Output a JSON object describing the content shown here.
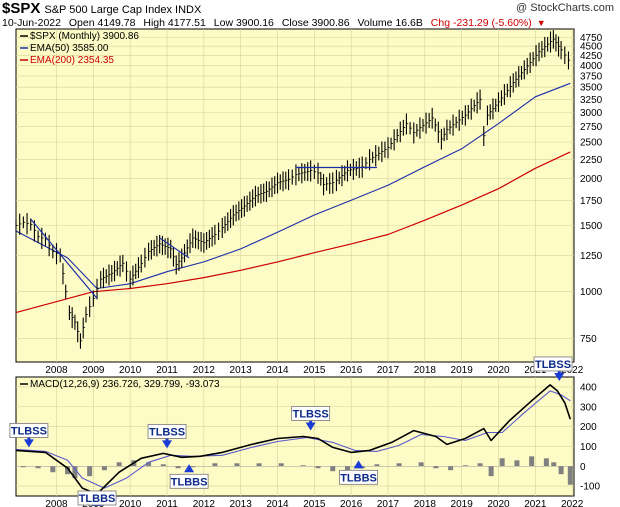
{
  "header": {
    "symbol": "$SPX",
    "description": "S&P 500 Large Cap Index INDX",
    "brand": "@ StockCharts.com",
    "quote": {
      "date": "10-Jun-2022",
      "open": "Open 4149.78",
      "high": "High 4177.51",
      "low": "Low 3900.16",
      "close": "Close 3900.86",
      "volume": "Volume 16.6B",
      "change": "Chg -231.29 (-5.60%)"
    }
  },
  "chart_data": [
    {
      "type": "line",
      "panel": "price",
      "y_scale": "log",
      "ylim": [
        650,
        5000
      ],
      "grid": true,
      "legend": [
        "$SPX (Monthly) 3900.86",
        "EMA(50) 3585.00",
        "EMA(200) 2354.35"
      ],
      "x_ticks": [
        "2008",
        "2009",
        "2010",
        "2011",
        "2012",
        "2013",
        "2014",
        "2015",
        "2016",
        "2017",
        "2018",
        "2019",
        "2020",
        "2021",
        "2022"
      ],
      "y_ticks": [
        750,
        1000,
        1250,
        1500,
        1750,
        2000,
        2250,
        2500,
        2750,
        3000,
        3250,
        3500,
        3750,
        4000,
        4250,
        4500,
        4750
      ],
      "colors": {
        "price": "#000000",
        "ema50": "#1c2fa8",
        "ema200": "#cc0000",
        "trendline": "#1c2fa8"
      },
      "series": [
        {
          "name": "$SPX (Monthly)",
          "x": [
            2007.4,
            2007.6,
            2007.8,
            2008.0,
            2008.2,
            2008.4,
            2008.6,
            2008.75,
            2008.85,
            2009.0,
            2009.15,
            2009.3,
            2009.5,
            2009.7,
            2010.0,
            2010.3,
            2010.5,
            2010.8,
            2011.0,
            2011.3,
            2011.6,
            2011.75,
            2011.9,
            2012.2,
            2012.5,
            2012.8,
            2013.0,
            2013.3,
            2013.6,
            2013.9,
            2014.2,
            2014.5,
            2014.8,
            2015.0,
            2015.4,
            2015.6,
            2015.75,
            2016.0,
            2016.1,
            2016.4,
            2016.8,
            2017.0,
            2017.5,
            2018.0,
            2018.2,
            2018.7,
            2018.95,
            2019.1,
            2019.6,
            2020.0,
            2020.1,
            2020.2,
            2020.5,
            2020.9,
            2021.2,
            2021.6,
            2021.99,
            2022.2,
            2022.4,
            2022.45
          ],
          "y": [
            1500,
            1530,
            1510,
            1400,
            1380,
            1280,
            1250,
            1000,
            880,
            830,
            740,
            870,
            960,
            1080,
            1120,
            1190,
            1080,
            1190,
            1280,
            1340,
            1300,
            1180,
            1230,
            1390,
            1350,
            1420,
            1480,
            1600,
            1690,
            1800,
            1850,
            1950,
            1990,
            2050,
            2100,
            2070,
            1930,
            1950,
            1980,
            2100,
            2150,
            2250,
            2420,
            2800,
            2650,
            2900,
            2550,
            2700,
            2950,
            3250,
            2600,
            2950,
            3200,
            3600,
            3900,
            4350,
            4700,
            4400,
            4130,
            3900
          ]
        },
        {
          "name": "EMA(50)",
          "x": [
            2007.4,
            2008.8,
            2009.6,
            2010.5,
            2011.5,
            2012.5,
            2013.5,
            2014.5,
            2015.5,
            2016.5,
            2017.5,
            2018.5,
            2019.5,
            2020.5,
            2021.5,
            2022.45
          ],
          "y": [
            1450,
            1230,
            1020,
            1050,
            1130,
            1200,
            1300,
            1440,
            1600,
            1750,
            1920,
            2150,
            2400,
            2800,
            3300,
            3585
          ]
        },
        {
          "name": "EMA(200)",
          "x": [
            2007.4,
            2009.5,
            2010.5,
            2011.5,
            2012.5,
            2013.5,
            2014.5,
            2015.5,
            2016.5,
            2017.5,
            2018.5,
            2019.5,
            2020.5,
            2021.5,
            2022.45
          ],
          "y": [
            880,
            1000,
            1020,
            1050,
            1090,
            1140,
            1200,
            1270,
            1340,
            1420,
            1550,
            1700,
            1880,
            2130,
            2354.35
          ]
        }
      ]
    },
    {
      "type": "line",
      "panel": "indicator",
      "ylim": [
        -150,
        450
      ],
      "grid": true,
      "legend": [
        "MACD(12,26,9) 236.726, 329.799, -93.073"
      ],
      "x_ticks": [
        "2008",
        "2009",
        "2010",
        "2011",
        "2012",
        "2013",
        "2014",
        "2015",
        "2016",
        "2017",
        "2018",
        "2019",
        "2020",
        "2021",
        "2022"
      ],
      "y_ticks": [
        -100,
        0,
        100,
        200,
        300,
        400
      ],
      "colors": {
        "macd": "#000000",
        "signal": "#5a5acd",
        "histogram": "#808080"
      },
      "series": [
        {
          "name": "MACD",
          "x": [
            2007.4,
            2008.2,
            2008.8,
            2009.2,
            2009.6,
            2010.2,
            2010.8,
            2011.4,
            2011.9,
            2012.4,
            2013.0,
            2013.8,
            2014.5,
            2015.2,
            2015.6,
            2016.0,
            2016.5,
            2017.0,
            2017.6,
            2018.2,
            2018.8,
            2019.1,
            2019.6,
            2020.1,
            2020.3,
            2020.8,
            2021.4,
            2021.9,
            2022.1,
            2022.3,
            2022.45
          ],
          "y": [
            80,
            70,
            -10,
            -110,
            -140,
            -30,
            40,
            65,
            45,
            50,
            70,
            110,
            140,
            150,
            140,
            95,
            70,
            80,
            120,
            180,
            150,
            110,
            140,
            190,
            130,
            230,
            330,
            410,
            380,
            320,
            236.726
          ]
        },
        {
          "name": "Signal",
          "x": [
            2007.4,
            2008.2,
            2008.8,
            2009.2,
            2009.8,
            2010.4,
            2011.0,
            2011.6,
            2012.2,
            2013.0,
            2013.8,
            2014.5,
            2015.3,
            2016.0,
            2016.6,
            2017.2,
            2017.8,
            2018.4,
            2019.0,
            2019.6,
            2020.2,
            2020.6,
            2021.2,
            2021.9,
            2022.2,
            2022.45
          ],
          "y": [
            85,
            75,
            30,
            -60,
            -110,
            -60,
            20,
            55,
            50,
            55,
            95,
            125,
            145,
            120,
            80,
            75,
            105,
            160,
            150,
            130,
            170,
            170,
            270,
            380,
            360,
            329.799
          ]
        },
        {
          "name": "Histogram",
          "x": [
            2007.6,
            2008.0,
            2008.4,
            2008.8,
            2009.0,
            2009.4,
            2009.8,
            2010.2,
            2010.6,
            2011.0,
            2011.4,
            2011.8,
            2012.2,
            2012.8,
            2013.4,
            2014.0,
            2014.6,
            2015.2,
            2015.6,
            2016.0,
            2016.4,
            2016.8,
            2017.2,
            2017.8,
            2018.4,
            2018.8,
            2019.2,
            2019.6,
            2020.0,
            2020.3,
            2020.6,
            2021.0,
            2021.4,
            2021.8,
            2022.0,
            2022.2,
            2022.45
          ],
          "y": [
            -5,
            -10,
            -30,
            -40,
            -60,
            -50,
            -20,
            20,
            30,
            20,
            10,
            -10,
            -5,
            15,
            15,
            15,
            15,
            5,
            -10,
            -25,
            -30,
            -10,
            10,
            15,
            20,
            -10,
            -20,
            5,
            15,
            -50,
            40,
            30,
            50,
            40,
            20,
            -40,
            -93.073
          ]
        }
      ]
    }
  ],
  "annotations": {
    "trendlines": [
      {
        "x1": 2007.8,
        "y1": 1560,
        "x2": 2009.6,
        "y2": 960
      },
      {
        "x1": 2011.3,
        "y1": 1390,
        "x2": 2012.1,
        "y2": 1230
      },
      {
        "x1": 2015.0,
        "y1": 2140,
        "x2": 2017.2,
        "y2": 2140
      }
    ],
    "labels": [
      {
        "text": "TLBSS",
        "x": 2007.75,
        "y": 85
      },
      {
        "text": "TLBBS",
        "x": 2009.6,
        "y": -150
      },
      {
        "text": "TLBSS",
        "x": 2011.5,
        "y": 80
      },
      {
        "text": "TLBBS",
        "x": 2012.1,
        "y": 20
      },
      {
        "text": "TLBSS",
        "x": 2015.4,
        "y": 170
      },
      {
        "text": "TLBBS",
        "x": 2016.7,
        "y": 40
      },
      {
        "text": "TLBSS",
        "x": 2022.15,
        "y": 420
      }
    ]
  }
}
